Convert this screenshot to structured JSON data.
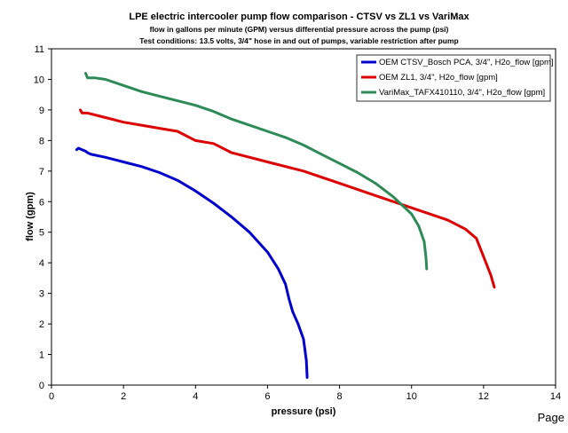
{
  "chart_data": {
    "type": "line",
    "title": "LPE electric intercooler pump flow comparison - CTSV vs ZL1 vs VariMax",
    "subtitle_lines": [
      "flow in gallons per minute (GPM) versus differential pressure across the pump (psi)",
      "Test conditions: 13.5 volts, 3/4\" hose in and out of pumps, variable restriction after pump"
    ],
    "xlabel": "pressure (psi)",
    "ylabel": "flow (gpm)",
    "xlim": [
      0,
      14
    ],
    "ylim": [
      0,
      11
    ],
    "x_ticks": [
      "0",
      "2",
      "4",
      "6",
      "8",
      "10",
      "12",
      "14"
    ],
    "y_ticks": [
      "0",
      "1",
      "2",
      "3",
      "4",
      "5",
      "6",
      "7",
      "8",
      "9",
      "10",
      "11"
    ],
    "grid": false,
    "legend_position": "top-right",
    "series": [
      {
        "name": "OEM CTSV_Bosch PCA, 3/4\", H2o_flow [gpm]",
        "color": "#0000cc",
        "points": [
          [
            0.7,
            7.7
          ],
          [
            0.75,
            7.75
          ],
          [
            0.85,
            7.7
          ],
          [
            0.95,
            7.65
          ],
          [
            1.0,
            7.6
          ],
          [
            1.1,
            7.55
          ],
          [
            1.5,
            7.45
          ],
          [
            2.0,
            7.3
          ],
          [
            2.5,
            7.15
          ],
          [
            3.0,
            6.95
          ],
          [
            3.5,
            6.7
          ],
          [
            4.0,
            6.35
          ],
          [
            4.5,
            5.95
          ],
          [
            5.0,
            5.5
          ],
          [
            5.5,
            5.0
          ],
          [
            6.0,
            4.35
          ],
          [
            6.3,
            3.8
          ],
          [
            6.5,
            3.3
          ],
          [
            6.6,
            2.8
          ],
          [
            6.7,
            2.4
          ],
          [
            6.85,
            2.0
          ],
          [
            7.0,
            1.5
          ],
          [
            7.08,
            0.8
          ],
          [
            7.1,
            0.25
          ]
        ]
      },
      {
        "name": "OEM ZL1, 3/4\", H2o_flow [gpm]",
        "color": "#dd0000",
        "points": [
          [
            0.8,
            9.0
          ],
          [
            0.85,
            8.9
          ],
          [
            1.0,
            8.9
          ],
          [
            1.5,
            8.75
          ],
          [
            2.0,
            8.6
          ],
          [
            2.5,
            8.5
          ],
          [
            3.0,
            8.4
          ],
          [
            3.5,
            8.3
          ],
          [
            4.0,
            8.0
          ],
          [
            4.5,
            7.9
          ],
          [
            5.0,
            7.6
          ],
          [
            6.0,
            7.3
          ],
          [
            7.0,
            7.0
          ],
          [
            8.0,
            6.6
          ],
          [
            9.0,
            6.2
          ],
          [
            10.0,
            5.8
          ],
          [
            11.0,
            5.4
          ],
          [
            11.5,
            5.1
          ],
          [
            11.8,
            4.8
          ],
          [
            12.0,
            4.2
          ],
          [
            12.2,
            3.6
          ],
          [
            12.3,
            3.2
          ]
        ]
      },
      {
        "name": "VariMax_TAFX410110, 3/4\", H2o_flow [gpm]",
        "color": "#2e8b57",
        "points": [
          [
            0.95,
            10.2
          ],
          [
            1.0,
            10.05
          ],
          [
            1.2,
            10.05
          ],
          [
            1.5,
            10.0
          ],
          [
            2.0,
            9.8
          ],
          [
            2.5,
            9.6
          ],
          [
            3.0,
            9.45
          ],
          [
            3.5,
            9.3
          ],
          [
            4.0,
            9.15
          ],
          [
            4.5,
            8.95
          ],
          [
            5.0,
            8.7
          ],
          [
            5.5,
            8.5
          ],
          [
            6.0,
            8.3
          ],
          [
            6.5,
            8.1
          ],
          [
            7.0,
            7.85
          ],
          [
            7.5,
            7.55
          ],
          [
            8.0,
            7.25
          ],
          [
            8.5,
            6.95
          ],
          [
            9.0,
            6.6
          ],
          [
            9.5,
            6.15
          ],
          [
            10.0,
            5.6
          ],
          [
            10.2,
            5.2
          ],
          [
            10.35,
            4.7
          ],
          [
            10.4,
            4.2
          ],
          [
            10.42,
            3.8
          ]
        ]
      }
    ]
  },
  "footer": {
    "page_label": "Page"
  }
}
